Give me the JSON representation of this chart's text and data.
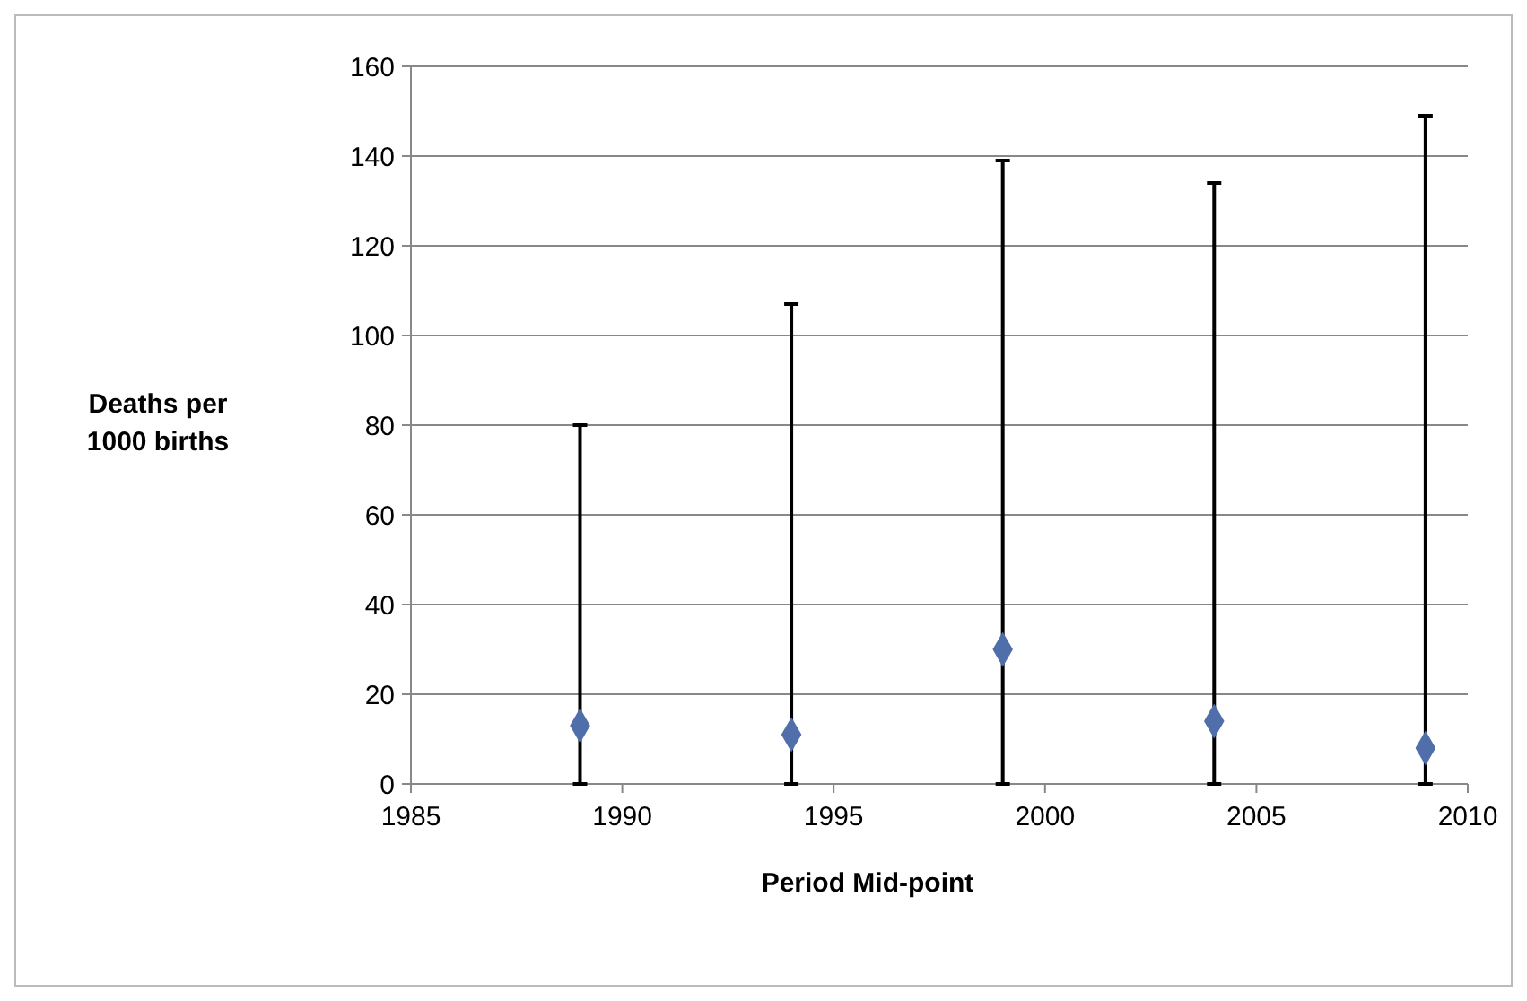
{
  "chart_data": {
    "type": "scatter",
    "xlabel": "Period Mid-point",
    "ylabel": "Deaths per\n1000 births",
    "x": [
      1989,
      1994,
      1999,
      2004,
      2009
    ],
    "series": [
      {
        "color": "#4f6eaa",
        "values": [
          13,
          11,
          30,
          14,
          8
        ],
        "errors": [
          [
            0,
            80
          ],
          [
            0,
            107
          ],
          [
            0,
            139
          ],
          [
            0,
            134
          ],
          [
            0,
            149
          ]
        ]
      }
    ],
    "xlim": [
      1985,
      2010
    ],
    "xticks": [
      1985,
      1990,
      1995,
      2000,
      2005,
      2010
    ],
    "ylim": [
      0,
      160
    ],
    "yticks": [
      0,
      20,
      40,
      60,
      80,
      100,
      120,
      140,
      160
    ],
    "grid": "y",
    "marker": "diamond"
  }
}
